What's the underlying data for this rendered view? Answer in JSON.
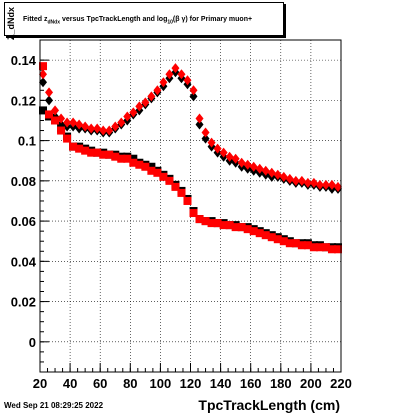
{
  "title": {
    "part1": "Fitted  z",
    "sub1": "dNdx",
    "part2": " versus TpcTrackLength and log",
    "sub2": "10",
    "part3": "(β γ) for Primary muon+"
  },
  "timestamp": "Wed Sep 21 08:29:25 2022",
  "chart_data": {
    "type": "scatter",
    "title": "Fitted z_dNdx versus TpcTrackLength and log10(βγ) for Primary muon+",
    "xlabel": "TpcTrackLength (cm)",
    "ylabel": "Z_dNdx",
    "xlim": [
      20,
      220
    ],
    "ylim": [
      -0.015,
      0.15
    ],
    "xticks": [
      20,
      40,
      60,
      80,
      100,
      120,
      140,
      160,
      180,
      200,
      220
    ],
    "xtick_labels": [
      "20",
      "40",
      "60",
      "80",
      "100",
      "120",
      "140",
      "160",
      "180",
      "200",
      "220"
    ],
    "yticks": [
      0,
      0.02,
      0.04,
      0.06,
      0.08,
      0.1,
      0.12,
      0.14
    ],
    "ytick_labels": [
      "0",
      "0.02",
      "0.04",
      "0.06",
      "0.08",
      "0.1",
      "0.12",
      "0.14"
    ],
    "grid": true,
    "series": [
      {
        "marker": "diamond",
        "color": "#000000",
        "x": [
          22,
          26,
          30,
          34,
          38,
          42,
          46,
          50,
          54,
          58,
          62,
          66,
          70,
          74,
          78,
          82,
          86,
          90,
          94,
          98,
          102,
          106,
          110,
          114,
          118,
          122,
          126,
          130,
          134,
          138,
          142,
          146,
          150,
          154,
          158,
          162,
          166,
          170,
          174,
          178,
          182,
          186,
          190,
          194,
          198,
          202,
          206,
          210,
          214,
          218
        ],
        "y": [
          0.129,
          0.12,
          0.112,
          0.108,
          0.107,
          0.107,
          0.106,
          0.106,
          0.105,
          0.105,
          0.104,
          0.104,
          0.106,
          0.108,
          0.11,
          0.113,
          0.115,
          0.118,
          0.121,
          0.124,
          0.127,
          0.131,
          0.134,
          0.131,
          0.128,
          0.122,
          0.108,
          0.101,
          0.097,
          0.094,
          0.092,
          0.09,
          0.089,
          0.087,
          0.086,
          0.085,
          0.084,
          0.083,
          0.082,
          0.082,
          0.081,
          0.08,
          0.079,
          0.079,
          0.078,
          0.078,
          0.077,
          0.077,
          0.076,
          0.076
        ]
      },
      {
        "marker": "diamond",
        "color": "#ff0000",
        "x": [
          22,
          26,
          30,
          34,
          38,
          42,
          46,
          50,
          54,
          58,
          62,
          66,
          70,
          74,
          78,
          82,
          86,
          90,
          94,
          98,
          102,
          106,
          110,
          114,
          118,
          122,
          126,
          130,
          134,
          138,
          142,
          146,
          150,
          154,
          158,
          162,
          166,
          170,
          174,
          178,
          182,
          186,
          190,
          194,
          198,
          202,
          206,
          210,
          214,
          218
        ],
        "y": [
          0.133,
          0.124,
          0.115,
          0.111,
          0.109,
          0.109,
          0.108,
          0.107,
          0.106,
          0.106,
          0.105,
          0.105,
          0.107,
          0.109,
          0.112,
          0.114,
          0.117,
          0.119,
          0.122,
          0.125,
          0.129,
          0.133,
          0.136,
          0.133,
          0.13,
          0.125,
          0.111,
          0.104,
          0.099,
          0.096,
          0.094,
          0.092,
          0.091,
          0.089,
          0.088,
          0.087,
          0.086,
          0.085,
          0.084,
          0.083,
          0.082,
          0.081,
          0.08,
          0.08,
          0.079,
          0.079,
          0.078,
          0.078,
          0.078,
          0.077
        ]
      },
      {
        "marker": "square",
        "color": "#000000",
        "x": [
          22,
          26,
          30,
          34,
          38,
          42,
          46,
          50,
          54,
          58,
          62,
          66,
          70,
          74,
          78,
          82,
          86,
          90,
          94,
          98,
          102,
          106,
          110,
          114,
          118,
          122,
          126,
          130,
          134,
          138,
          142,
          146,
          150,
          154,
          158,
          162,
          166,
          170,
          174,
          178,
          182,
          186,
          190,
          194,
          198,
          202,
          206,
          210,
          214,
          218
        ],
        "y": [
          0.115,
          0.112,
          0.11,
          0.106,
          0.102,
          0.097,
          0.097,
          0.096,
          0.095,
          0.094,
          0.094,
          0.093,
          0.093,
          0.092,
          0.092,
          0.091,
          0.089,
          0.088,
          0.087,
          0.085,
          0.083,
          0.081,
          0.078,
          0.075,
          0.071,
          0.065,
          0.061,
          0.06,
          0.06,
          0.059,
          0.059,
          0.058,
          0.058,
          0.057,
          0.057,
          0.056,
          0.055,
          0.054,
          0.053,
          0.052,
          0.051,
          0.05,
          0.049,
          0.049,
          0.049,
          0.048,
          0.048,
          0.047,
          0.047,
          0.047
        ]
      },
      {
        "marker": "square",
        "color": "#ff0000",
        "x": [
          22,
          26,
          30,
          34,
          38,
          42,
          46,
          50,
          54,
          58,
          62,
          66,
          70,
          74,
          78,
          82,
          86,
          90,
          94,
          98,
          102,
          106,
          110,
          114,
          118,
          122,
          126,
          130,
          134,
          138,
          142,
          146,
          150,
          154,
          158,
          162,
          166,
          170,
          174,
          178,
          182,
          186,
          190,
          194,
          198,
          202,
          206,
          210,
          214,
          218
        ],
        "y": [
          0.137,
          0.113,
          0.11,
          0.105,
          0.101,
          0.097,
          0.096,
          0.095,
          0.094,
          0.094,
          0.093,
          0.093,
          0.092,
          0.091,
          0.091,
          0.089,
          0.088,
          0.087,
          0.085,
          0.084,
          0.082,
          0.08,
          0.077,
          0.074,
          0.07,
          0.064,
          0.061,
          0.06,
          0.059,
          0.059,
          0.058,
          0.058,
          0.057,
          0.057,
          0.056,
          0.055,
          0.054,
          0.053,
          0.052,
          0.051,
          0.05,
          0.049,
          0.049,
          0.048,
          0.048,
          0.047,
          0.047,
          0.047,
          0.046,
          0.046
        ]
      }
    ]
  }
}
